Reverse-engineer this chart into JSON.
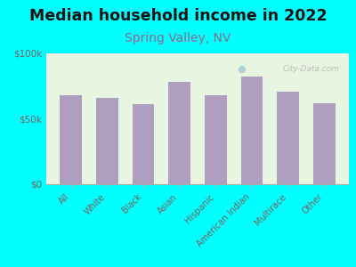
{
  "title": "Median household income in 2022",
  "subtitle": "Spring Valley, NV",
  "categories": [
    "All",
    "White",
    "Black",
    "Asian",
    "Hispanic",
    "American Indian",
    "Multirace",
    "Other"
  ],
  "values": [
    68000,
    66000,
    61000,
    78000,
    68000,
    82000,
    71000,
    62000
  ],
  "bar_color": "#b09ec0",
  "background_outer": "#00ffff",
  "background_inner_top": "#e8f5e0",
  "background_inner_bottom": "#f5fbf5",
  "title_color": "#111111",
  "subtitle_color": "#8b6b8b",
  "tick_label_color": "#7a6060",
  "ytick_labels": [
    "$0",
    "$50k",
    "$100k"
  ],
  "ytick_values": [
    0,
    50000,
    100000
  ],
  "ylim": [
    0,
    100000
  ],
  "watermark": "City-Data.com",
  "title_fontsize": 12.5,
  "subtitle_fontsize": 10,
  "bar_width": 0.6
}
